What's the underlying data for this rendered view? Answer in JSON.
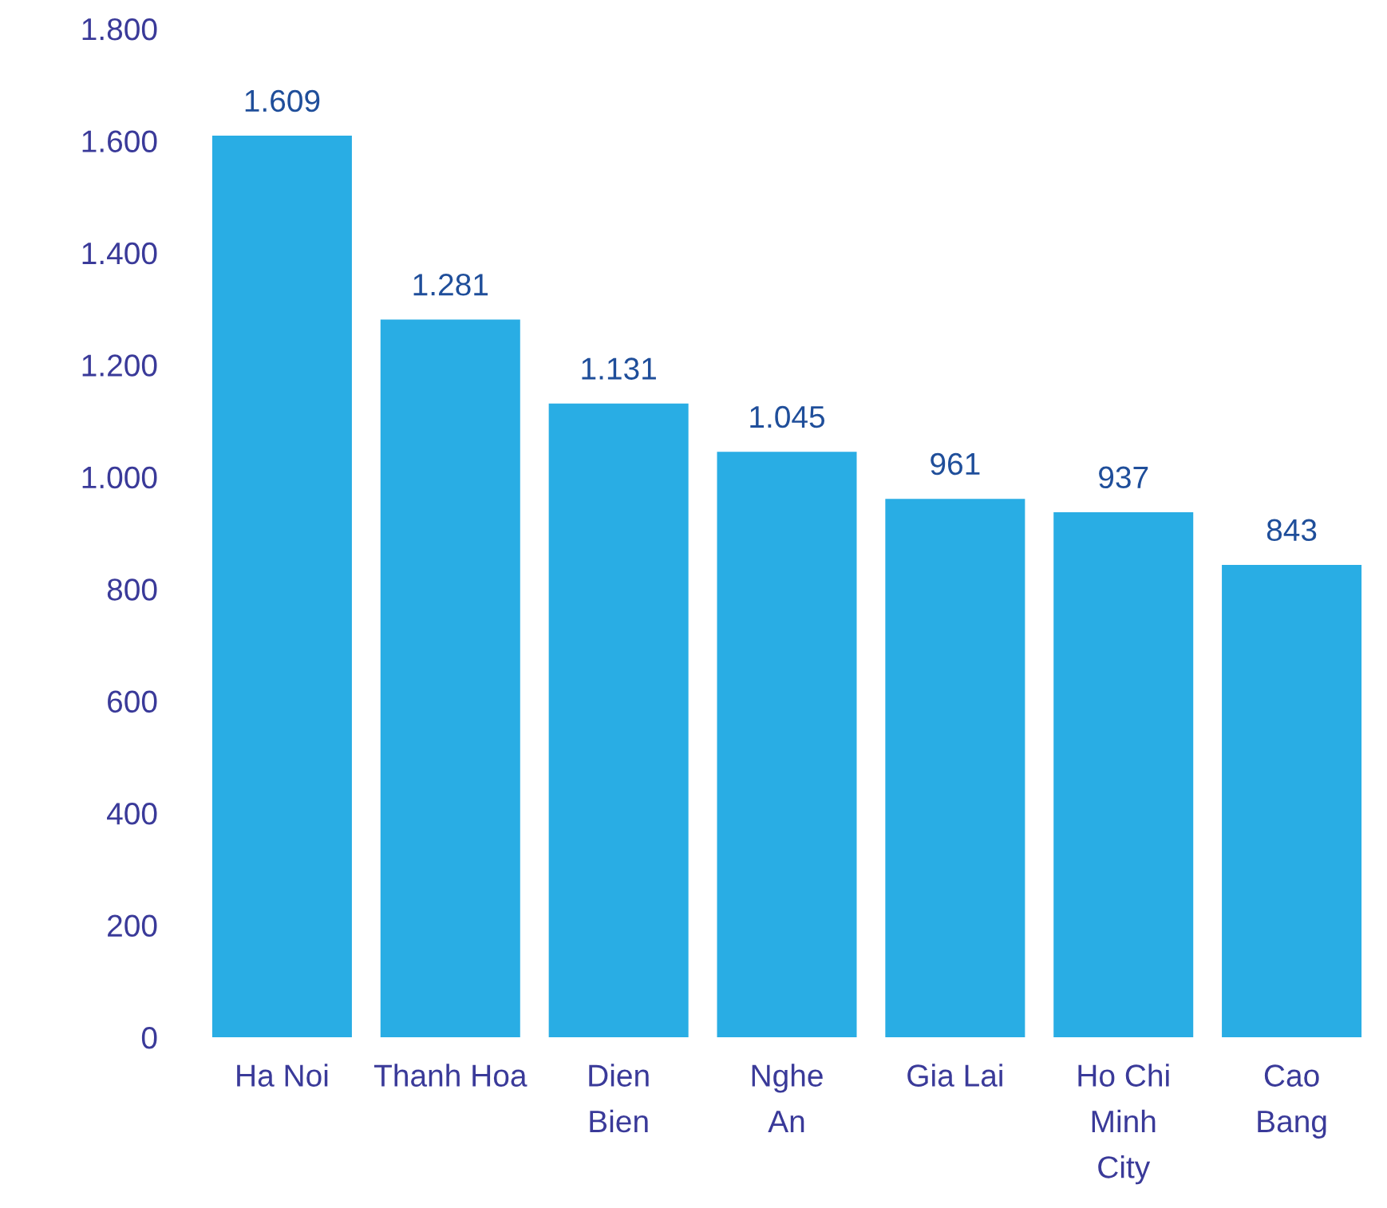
{
  "chart_data": {
    "type": "bar",
    "categories": [
      "Ha Noi",
      "Thanh Hoa",
      "Dien\nBien",
      "Nghe\nAn",
      "Gia Lai",
      "Ho Chi\nMinh\nCity",
      "Cao\nBang"
    ],
    "values": [
      1609,
      1281,
      1131,
      1045,
      961,
      937,
      843
    ],
    "value_labels": [
      "1.609",
      "1.281",
      "1.131",
      "1.045",
      "961",
      "937",
      "843"
    ],
    "color": "#29ade4",
    "ylim": [
      0,
      1800
    ],
    "yticks": [
      {
        "value": 0,
        "label": "0"
      },
      {
        "value": 200,
        "label": "200"
      },
      {
        "value": 400,
        "label": "400"
      },
      {
        "value": 600,
        "label": "600"
      },
      {
        "value": 800,
        "label": "800"
      },
      {
        "value": 1000,
        "label": "1.000"
      },
      {
        "value": 1200,
        "label": "1.200"
      },
      {
        "value": 1400,
        "label": "1.400"
      },
      {
        "value": 1600,
        "label": "1.600"
      },
      {
        "value": 1800,
        "label": "1.800"
      }
    ],
    "grid": false
  }
}
